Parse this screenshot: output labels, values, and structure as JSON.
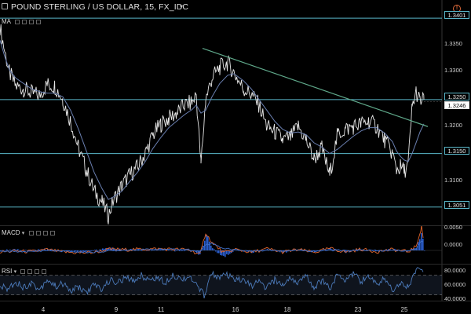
{
  "header": {
    "symbol": "POUND STERLING / US DOLLAR, 15, FX_IDC",
    "study": "MA"
  },
  "indicators": {
    "macd_label": "MACD",
    "rsi_label": "RSI"
  },
  "alert_label": "!",
  "price_axis": {
    "ticks": [
      "1.3350",
      "1.3300",
      "1.3200",
      "1.3100"
    ],
    "hlines": [
      {
        "value": 1.3401,
        "label": "1.3401"
      },
      {
        "value": 1.325,
        "label": "1.3250"
      },
      {
        "value": 1.315,
        "label": "1.3150"
      },
      {
        "value": 1.3051,
        "label": "1.3051"
      }
    ],
    "current": {
      "value": 1.3246,
      "label": "1.3246"
    }
  },
  "macd_axis": {
    "ticks": [
      "0.0050",
      "0.0000"
    ]
  },
  "rsi_axis": {
    "ticks": [
      "80.0000",
      "60.0000",
      "40.0000"
    ]
  },
  "time_axis": {
    "labels": [
      "4",
      "9",
      "11",
      "16",
      "18",
      "23",
      "25"
    ]
  },
  "chart_data": {
    "type": "line",
    "title": "POUND STERLING / US DOLLAR, 15, FX_IDC",
    "x": [
      0,
      6,
      12,
      20,
      30,
      40,
      50,
      60,
      70,
      80,
      90,
      100,
      110,
      120,
      130,
      138,
      145,
      155,
      165,
      175,
      185,
      195,
      205,
      215,
      225,
      235,
      245,
      250,
      256,
      262,
      270,
      280,
      290,
      298,
      310,
      320,
      330,
      340,
      350,
      360,
      370,
      380,
      390,
      400,
      410,
      420,
      430,
      440,
      450,
      460,
      470,
      480,
      490,
      500,
      505,
      510,
      515,
      520,
      525,
      530,
      535,
      540
    ],
    "price": [
      1.3385,
      1.334,
      1.33,
      1.3275,
      1.327,
      1.3262,
      1.3258,
      1.3278,
      1.3275,
      1.325,
      1.321,
      1.316,
      1.312,
      1.308,
      1.306,
      1.3035,
      1.3065,
      1.309,
      1.311,
      1.3125,
      1.315,
      1.3185,
      1.3205,
      1.3215,
      1.3225,
      1.324,
      1.3245,
      1.326,
      1.313,
      1.325,
      1.329,
      1.331,
      1.3318,
      1.33,
      1.327,
      1.326,
      1.324,
      1.32,
      1.319,
      1.3175,
      1.318,
      1.32,
      1.3175,
      1.314,
      1.316,
      1.311,
      1.3185,
      1.3195,
      1.32,
      1.3205,
      1.321,
      1.32,
      1.3175,
      1.315,
      1.312,
      1.3125,
      1.3118,
      1.313,
      1.3235,
      1.3265,
      1.3246,
      1.325
    ],
    "ma": [
      1.336,
      1.333,
      1.3305,
      1.329,
      1.328,
      1.327,
      1.3265,
      1.3262,
      1.3262,
      1.3255,
      1.323,
      1.3195,
      1.3155,
      1.3115,
      1.3085,
      1.3065,
      1.307,
      1.308,
      1.3098,
      1.3115,
      1.3135,
      1.316,
      1.318,
      1.3198,
      1.321,
      1.3222,
      1.3232,
      1.324,
      1.3225,
      1.323,
      1.3255,
      1.328,
      1.3295,
      1.3298,
      1.3285,
      1.327,
      1.325,
      1.323,
      1.321,
      1.3195,
      1.3188,
      1.319,
      1.3185,
      1.317,
      1.3162,
      1.315,
      1.3158,
      1.317,
      1.3182,
      1.3192,
      1.3198,
      1.3198,
      1.3188,
      1.3172,
      1.3155,
      1.3145,
      1.3138,
      1.3135,
      1.315,
      1.317,
      1.319,
      1.3205
    ],
    "trendline": {
      "x": [
        258,
        545
      ],
      "price": [
        1.3345,
        1.32
      ]
    },
    "ylim": [
      1.302,
      1.342
    ],
    "macd": {
      "x": [
        0,
        20,
        40,
        60,
        80,
        100,
        120,
        140,
        160,
        180,
        200,
        220,
        240,
        255,
        262,
        270,
        285,
        300,
        320,
        340,
        360,
        380,
        400,
        420,
        440,
        460,
        480,
        500,
        520,
        530,
        537,
        540
      ],
      "macd": [
        -0.0004,
        -0.0002,
        -0.0003,
        0.0002,
        -0.0004,
        -0.0006,
        -0.0005,
        0.0003,
        0.0002,
        0.0003,
        0.0004,
        0.0003,
        0.0002,
        -0.001,
        0.0045,
        0.002,
        -0.0006,
        0.0003,
        -0.0005,
        0.0004,
        -0.0004,
        0.0002,
        -0.0005,
        0.0005,
        -0.0004,
        0.0003,
        -0.0003,
        0.0002,
        -0.0003,
        0.001,
        0.006,
        0.002
      ],
      "signal": [
        -0.0003,
        -0.0003,
        -0.0003,
        0.0,
        -0.0002,
        -0.0004,
        -0.0005,
        -0.0001,
        0.0001,
        0.0002,
        0.0003,
        0.0003,
        0.0002,
        -0.0003,
        0.0015,
        0.0018,
        0.0005,
        0.0002,
        -0.0002,
        0.0001,
        -0.0001,
        0.0001,
        -0.0002,
        0.0001,
        -0.0001,
        0.0001,
        -0.0001,
        0.0,
        -0.0001,
        0.0004,
        0.0025,
        0.0022
      ],
      "ylim": [
        -0.003,
        0.006
      ]
    },
    "rsi": {
      "x": [
        0,
        10,
        20,
        30,
        40,
        50,
        60,
        70,
        80,
        90,
        100,
        110,
        120,
        130,
        140,
        150,
        160,
        170,
        180,
        190,
        200,
        210,
        220,
        230,
        240,
        250,
        260,
        270,
        280,
        290,
        300,
        310,
        320,
        330,
        340,
        350,
        360,
        370,
        380,
        390,
        400,
        410,
        420,
        430,
        440,
        450,
        460,
        470,
        480,
        490,
        500,
        510,
        520,
        530,
        540
      ],
      "values": [
        48,
        42,
        58,
        45,
        55,
        40,
        62,
        48,
        52,
        38,
        46,
        35,
        50,
        42,
        60,
        55,
        64,
        58,
        70,
        60,
        66,
        55,
        72,
        62,
        68,
        50,
        30,
        75,
        65,
        70,
        58,
        62,
        48,
        56,
        44,
        60,
        50,
        66,
        54,
        68,
        46,
        60,
        44,
        70,
        62,
        74,
        58,
        66,
        52,
        64,
        40,
        56,
        46,
        82,
        76
      ],
      "ylim": [
        20,
        90
      ]
    }
  },
  "colors": {
    "price_line": "#e6e6e6",
    "ma_line": "#6a7fb0",
    "trendline": "#5fa88a",
    "hline": "#5ab7c9",
    "macd_line": "#e0642a",
    "signal_line": "#3f6fc7",
    "rsi_line": "#4b79b8",
    "rsi_band": "#2b3a52",
    "alert": "#e06a3a"
  }
}
